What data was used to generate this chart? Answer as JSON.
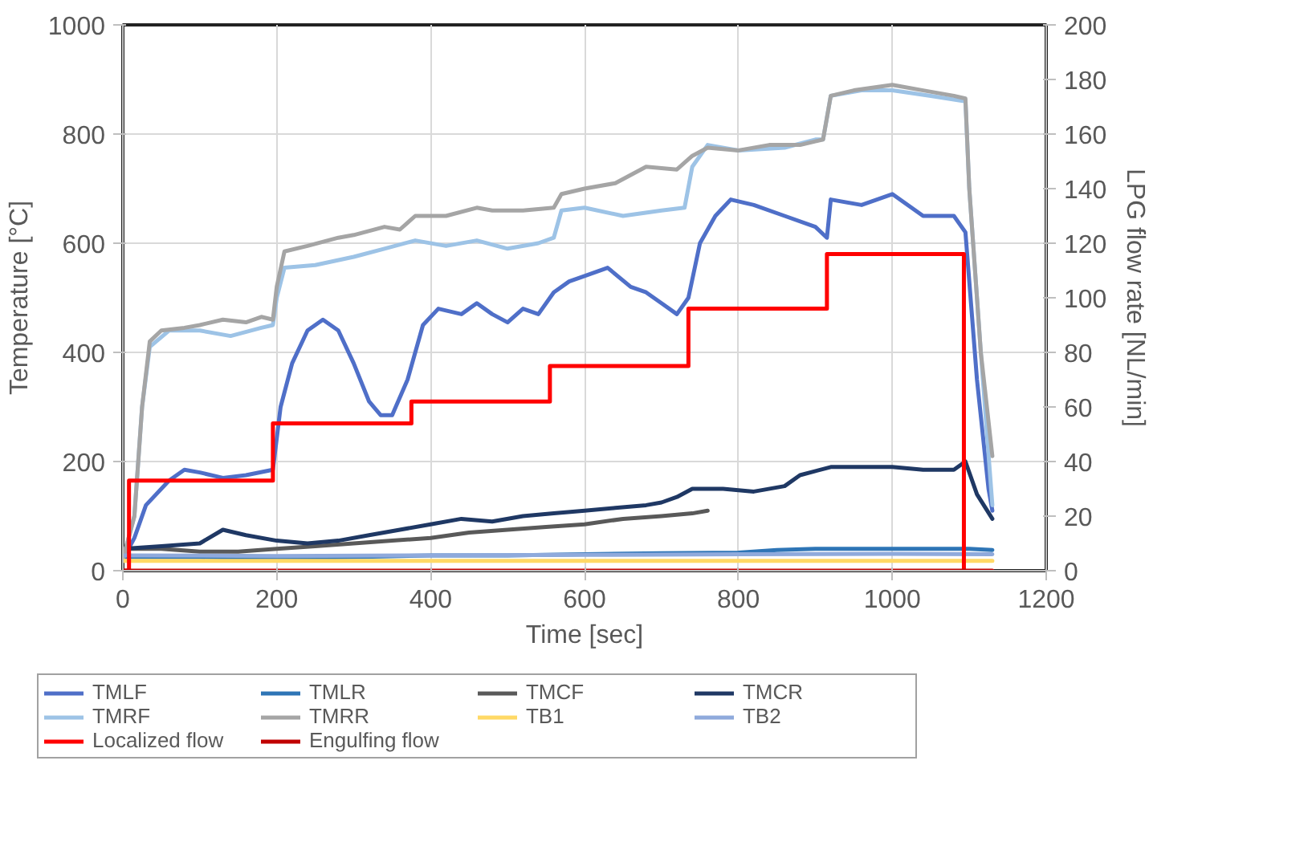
{
  "chart_data": {
    "type": "line",
    "xlabel": "Time [sec]",
    "ylabel": "Temperature [°C]",
    "y2label": "LPG flow rate [NL/min]",
    "xlim": [
      0,
      1200
    ],
    "xticks": [
      0,
      200,
      400,
      600,
      800,
      1000,
      1200
    ],
    "ylim": [
      0,
      1000
    ],
    "yticks": [
      0,
      200,
      400,
      600,
      800,
      1000
    ],
    "y2lim": [
      0,
      200
    ],
    "y2ticks": [
      0,
      20,
      40,
      60,
      80,
      100,
      120,
      140,
      160,
      180,
      200
    ],
    "grid": true,
    "legend": "bottom",
    "series": [
      {
        "name": "TMLF",
        "color": "#4f6fc8",
        "x": [
          0,
          15,
          30,
          60,
          80,
          100,
          130,
          160,
          195,
          205,
          220,
          240,
          260,
          280,
          300,
          320,
          335,
          350,
          370,
          390,
          410,
          440,
          460,
          480,
          500,
          520,
          540,
          560,
          580,
          600,
          630,
          660,
          680,
          700,
          720,
          735,
          750,
          770,
          790,
          820,
          860,
          900,
          915,
          920,
          960,
          1000,
          1040,
          1080,
          1095,
          1110,
          1125,
          1130
        ],
        "values": [
          20,
          60,
          120,
          165,
          185,
          180,
          170,
          175,
          185,
          300,
          380,
          440,
          460,
          440,
          380,
          310,
          285,
          285,
          350,
          450,
          480,
          470,
          490,
          470,
          455,
          480,
          470,
          510,
          530,
          540,
          555,
          520,
          510,
          490,
          470,
          500,
          600,
          650,
          680,
          670,
          650,
          630,
          610,
          680,
          670,
          690,
          650,
          650,
          620,
          350,
          150,
          110
        ]
      },
      {
        "name": "TMLR",
        "color": "#2e75b6",
        "x": [
          0,
          100,
          200,
          300,
          400,
          500,
          600,
          700,
          800,
          850,
          900,
          1000,
          1100,
          1130
        ],
        "values": [
          25,
          25,
          22,
          25,
          28,
          28,
          30,
          32,
          33,
          38,
          40,
          40,
          40,
          38
        ]
      },
      {
        "name": "TMCF",
        "color": "#595959",
        "x": [
          0,
          50,
          100,
          150,
          200,
          250,
          300,
          350,
          400,
          450,
          500,
          550,
          600,
          650,
          700,
          740,
          760
        ],
        "values": [
          40,
          40,
          35,
          35,
          40,
          45,
          50,
          55,
          60,
          70,
          75,
          80,
          85,
          95,
          100,
          105,
          110
        ]
      },
      {
        "name": "TMCR",
        "color": "#1f3864",
        "x": [
          0,
          50,
          100,
          130,
          160,
          200,
          240,
          280,
          320,
          360,
          400,
          440,
          480,
          520,
          560,
          600,
          640,
          680,
          700,
          720,
          740,
          780,
          820,
          860,
          880,
          920,
          960,
          1000,
          1040,
          1080,
          1095,
          1110,
          1130
        ],
        "values": [
          40,
          45,
          50,
          75,
          65,
          55,
          50,
          55,
          65,
          75,
          85,
          95,
          90,
          100,
          105,
          110,
          115,
          120,
          125,
          135,
          150,
          150,
          145,
          155,
          175,
          190,
          190,
          190,
          185,
          185,
          200,
          140,
          95
        ]
      },
      {
        "name": "TMRF",
        "color": "#9dc3e6",
        "x": [
          0,
          15,
          25,
          35,
          60,
          100,
          140,
          180,
          195,
          200,
          210,
          250,
          300,
          340,
          380,
          420,
          460,
          500,
          540,
          560,
          570,
          600,
          650,
          700,
          730,
          740,
          760,
          800,
          860,
          900,
          910,
          920,
          960,
          1000,
          1050,
          1095,
          1100,
          1115,
          1130
        ],
        "values": [
          20,
          100,
          300,
          410,
          440,
          440,
          430,
          445,
          450,
          500,
          555,
          560,
          575,
          590,
          605,
          595,
          605,
          590,
          600,
          610,
          660,
          665,
          650,
          660,
          665,
          740,
          780,
          770,
          775,
          790,
          790,
          870,
          880,
          880,
          870,
          860,
          700,
          400,
          120
        ]
      },
      {
        "name": "TMRR",
        "color": "#a5a5a5",
        "x": [
          0,
          15,
          25,
          35,
          50,
          80,
          100,
          130,
          160,
          180,
          195,
          200,
          210,
          240,
          280,
          300,
          340,
          360,
          380,
          420,
          460,
          480,
          520,
          560,
          570,
          600,
          640,
          680,
          720,
          740,
          760,
          800,
          840,
          880,
          910,
          920,
          950,
          1000,
          1040,
          1080,
          1095,
          1100,
          1115,
          1130
        ],
        "values": [
          20,
          100,
          300,
          420,
          440,
          445,
          450,
          460,
          455,
          465,
          460,
          520,
          585,
          595,
          610,
          615,
          630,
          625,
          650,
          650,
          665,
          660,
          660,
          665,
          690,
          700,
          710,
          740,
          735,
          760,
          775,
          770,
          780,
          780,
          790,
          870,
          880,
          890,
          880,
          870,
          865,
          700,
          400,
          210
        ]
      },
      {
        "name": "TB1",
        "color": "#ffd966",
        "x": [
          0,
          200,
          400,
          600,
          800,
          1000,
          1130
        ],
        "values": [
          18,
          18,
          18,
          18,
          18,
          18,
          18
        ]
      },
      {
        "name": "TB2",
        "color": "#8faadc",
        "x": [
          0,
          200,
          400,
          600,
          800,
          1000,
          1130
        ],
        "values": [
          28,
          27,
          28,
          29,
          30,
          31,
          30
        ]
      },
      {
        "name": "Localized flow",
        "color": "#ff0000",
        "type": "step",
        "axis": "y2",
        "x": [
          0,
          8,
          195,
          375,
          555,
          735,
          915,
          1093
        ],
        "values": [
          0,
          33,
          54,
          62,
          75,
          96,
          116,
          0
        ]
      },
      {
        "name": "Engulfing flow",
        "color": "#c00000",
        "axis": "y2",
        "x": [
          0,
          1130
        ],
        "values": [
          0,
          0
        ]
      }
    ]
  }
}
